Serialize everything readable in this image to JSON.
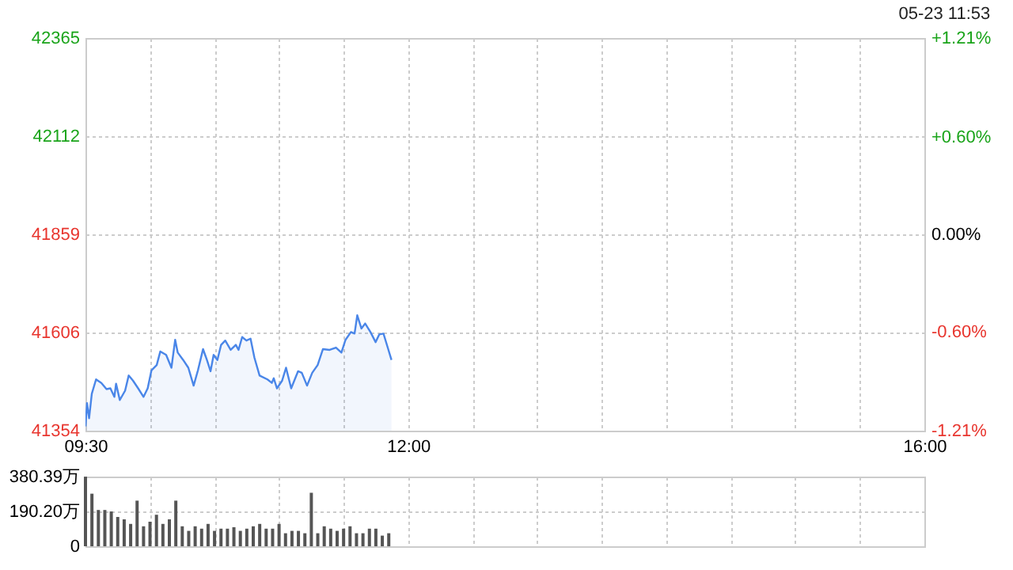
{
  "chart_data": [
    {
      "type": "area",
      "annotations": [
        "05-23 11:53"
      ],
      "x": [
        9.5,
        9.512,
        9.528,
        9.549,
        9.582,
        9.623,
        9.663,
        9.693,
        9.724,
        9.737,
        9.766,
        9.807,
        9.835,
        9.868,
        9.908,
        9.95,
        9.982,
        10.011,
        10.052,
        10.08,
        10.125,
        10.166,
        10.195,
        10.215,
        10.257,
        10.297,
        10.338,
        10.371,
        10.411,
        10.441,
        10.469,
        10.493,
        10.522,
        10.551,
        10.583,
        10.625,
        10.665,
        10.686,
        10.714,
        10.747,
        10.779,
        10.809,
        10.849,
        10.91,
        10.944,
        10.959,
        10.984,
        11.024,
        11.054,
        11.094,
        11.147,
        11.176,
        11.217,
        11.257,
        11.299,
        11.34,
        11.392,
        11.441,
        11.483,
        11.515,
        11.557,
        11.585,
        11.606,
        11.638,
        11.667,
        11.708,
        11.748,
        11.777,
        11.809,
        11.842,
        11.871
      ],
      "series": [
        {
          "color": "#4a86e8",
          "values": [
            41365,
            41425,
            41386,
            41449,
            41486,
            41477,
            41461,
            41463,
            41441,
            41475,
            41433,
            41457,
            41496,
            41483,
            41463,
            41441,
            41463,
            41509,
            41523,
            41558,
            41549,
            41516,
            41588,
            41555,
            41536,
            41516,
            41470,
            41509,
            41564,
            41536,
            41507,
            41549,
            41536,
            41575,
            41586,
            41562,
            41575,
            41562,
            41595,
            41586,
            41591,
            41542,
            41496,
            41486,
            41477,
            41489,
            41463,
            41483,
            41516,
            41463,
            41507,
            41503,
            41470,
            41503,
            41523,
            41564,
            41562,
            41568,
            41555,
            41588,
            41608,
            41604,
            41651,
            41617,
            41630,
            41608,
            41582,
            41602,
            41604,
            41568,
            41536
          ]
        }
      ],
      "xlim": [
        9.5,
        16
      ],
      "xticks": [
        {
          "value": 9.5,
          "label": "09:30"
        },
        {
          "value": 10,
          "label": null
        },
        {
          "value": 10.5,
          "label": null
        },
        {
          "value": 11,
          "label": null
        },
        {
          "value": 11.5,
          "label": null
        },
        {
          "value": 12,
          "label": "12:00"
        },
        {
          "value": 12.5,
          "label": null
        },
        {
          "value": 13,
          "label": null
        },
        {
          "value": 13.5,
          "label": null
        },
        {
          "value": 14,
          "label": null
        },
        {
          "value": 14.5,
          "label": null
        },
        {
          "value": 15,
          "label": null
        },
        {
          "value": 15.5,
          "label": null
        },
        {
          "value": 16,
          "label": "16:00"
        }
      ],
      "ylim": [
        41354,
        42365
      ],
      "yticks": [
        41354,
        41606,
        41859,
        42112,
        42365
      ],
      "y2lim": [
        -1.21,
        1.21
      ],
      "y2ticks": [
        {
          "value": -1.21,
          "label": "-1.21%"
        },
        {
          "value": -0.6,
          "label": "-0.60%"
        },
        {
          "value": 0,
          "label": "0.00%"
        },
        {
          "value": 0.6,
          "label": "+0.60%"
        },
        {
          "value": 1.21,
          "label": "+1.21%"
        }
      ],
      "grid": true
    },
    {
      "type": "bar",
      "x": [
        9.5,
        9.55,
        9.6,
        9.65,
        9.7,
        9.75,
        9.8,
        9.85,
        9.9,
        9.95,
        10.0,
        10.05,
        10.1,
        10.15,
        10.2,
        10.25,
        10.3,
        10.35,
        10.4,
        10.45,
        10.5,
        10.55,
        10.6,
        10.65,
        10.7,
        10.75,
        10.8,
        10.85,
        10.9,
        10.95,
        11.0,
        11.05,
        11.1,
        11.15,
        11.2,
        11.25,
        11.3,
        11.35,
        11.4,
        11.45,
        11.5,
        11.55,
        11.6,
        11.65,
        11.7,
        11.75,
        11.8,
        11.85
      ],
      "series": [
        {
          "color": "#555555",
          "values": [
            380,
            287,
            198,
            198,
            190,
            160,
            147,
            122,
            249,
            109,
            134,
            172,
            122,
            147,
            249,
            109,
            84,
            109,
            96,
            122,
            84,
            96,
            96,
            104,
            84,
            96,
            109,
            122,
            96,
            96,
            122,
            71,
            84,
            84,
            71,
            292,
            71,
            109,
            96,
            84,
            96,
            109,
            71,
            71,
            96,
            96,
            58,
            71
          ]
        }
      ],
      "xlim": [
        9.5,
        16
      ],
      "xticks": [
        {
          "value": 9.5,
          "label": null
        },
        {
          "value": 10,
          "label": null
        },
        {
          "value": 10.5,
          "label": null
        },
        {
          "value": 11,
          "label": null
        },
        {
          "value": 11.5,
          "label": null
        },
        {
          "value": 12,
          "label": null
        },
        {
          "value": 12.5,
          "label": null
        },
        {
          "value": 13,
          "label": null
        },
        {
          "value": 13.5,
          "label": null
        },
        {
          "value": 14,
          "label": null
        },
        {
          "value": 14.5,
          "label": null
        },
        {
          "value": 15,
          "label": null
        },
        {
          "value": 15.5,
          "label": null
        },
        {
          "value": 16,
          "label": null
        }
      ],
      "ylim": [
        0,
        380.39
      ],
      "yticks": [
        0,
        {
          "value": 190.2,
          "label": "190.20万"
        },
        {
          "value": 380.39,
          "label": "380.39万"
        }
      ],
      "tick_labels": "y",
      "grid": true
    }
  ]
}
